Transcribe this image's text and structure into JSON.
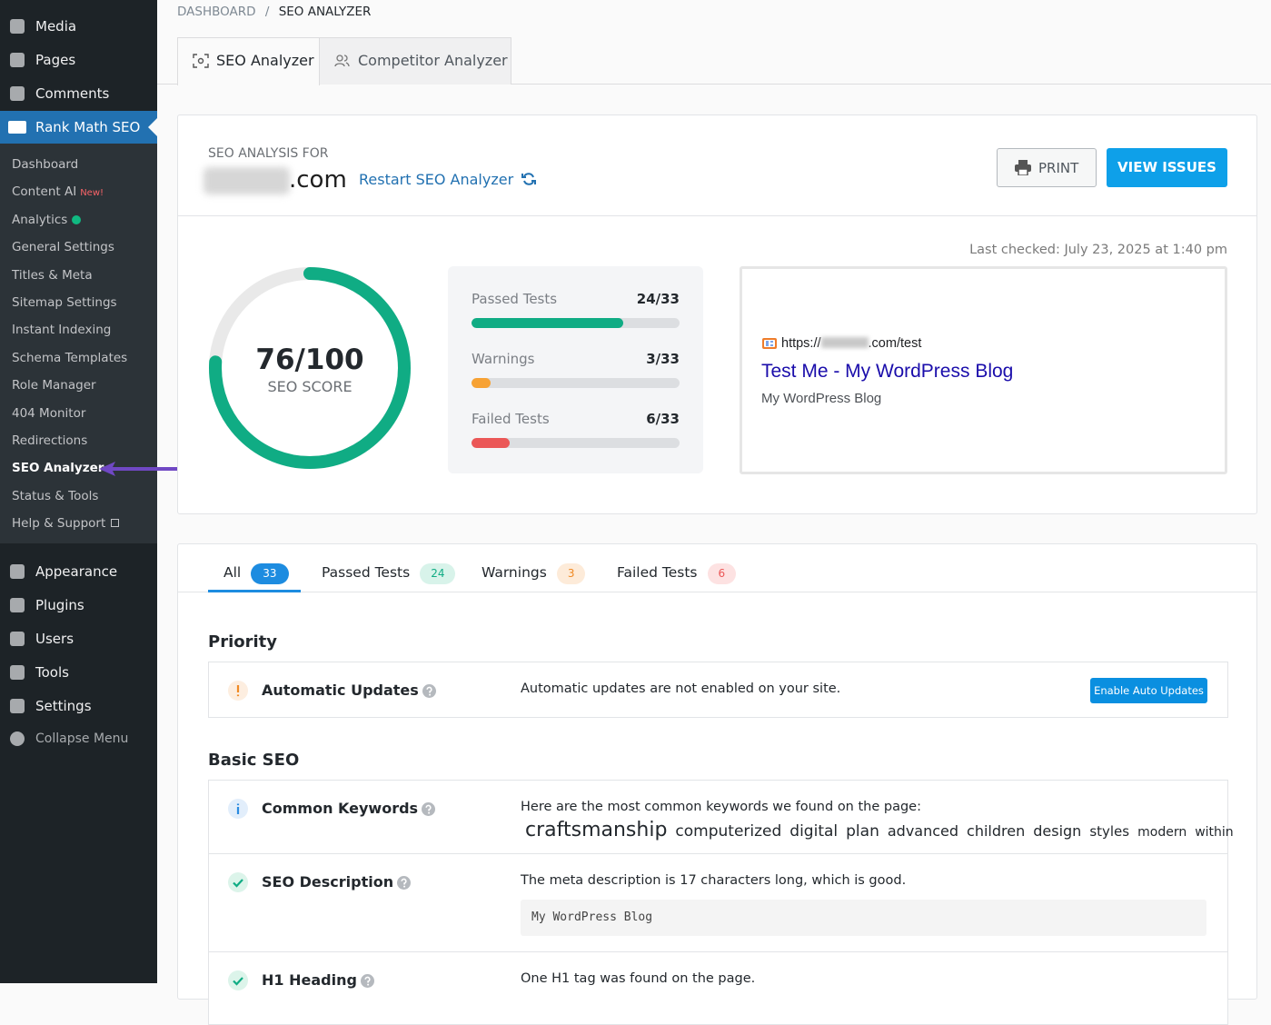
{
  "sidebar": {
    "menu_top": [
      "Media",
      "Pages",
      "Comments"
    ],
    "active": "Rank Math SEO",
    "submenu": [
      "Dashboard",
      "Content AI",
      "Analytics",
      "General Settings",
      "Titles & Meta",
      "Sitemap Settings",
      "Instant Indexing",
      "Schema Templates",
      "Role Manager",
      "404 Monitor",
      "Redirections",
      "SEO Analyzer",
      "Status & Tools",
      "Help & Support"
    ],
    "new_badge": "New!",
    "menu_bottom": [
      "Appearance",
      "Plugins",
      "Users",
      "Tools",
      "Settings",
      "Collapse Menu"
    ]
  },
  "breadcrumb": {
    "parent": "DASHBOARD",
    "separator": "/",
    "current": "SEO ANALYZER"
  },
  "tabs": [
    "SEO Analyzer",
    "Competitor Analyzer"
  ],
  "analysis": {
    "label": "SEO ANALYSIS FOR",
    "domain_suffix": ".com",
    "restart": "Restart SEO Analyzer",
    "print": "PRINT",
    "view_issues": "VIEW ISSUES",
    "last_checked": "Last checked: July 23, 2025 at 1:40 pm"
  },
  "score": {
    "value": 76,
    "max": 100,
    "value_label": "76/100",
    "label": "SEO SCORE"
  },
  "stats": [
    {
      "label": "Passed Tests",
      "value": 24,
      "total": 33,
      "value_label": "24/33"
    },
    {
      "label": "Warnings",
      "value": 3,
      "total": 33,
      "value_label": "3/33"
    },
    {
      "label": "Failed Tests",
      "value": 6,
      "total": 33,
      "value_label": "6/33"
    }
  ],
  "preview": {
    "url_prefix": "https://",
    "url_suffix": ".com/test",
    "title": "Test Me - My WordPress Blog",
    "description": "My WordPress Blog"
  },
  "filters": [
    {
      "label": "All",
      "count": 33
    },
    {
      "label": "Passed Tests",
      "count": 24
    },
    {
      "label": "Warnings",
      "count": 3
    },
    {
      "label": "Failed Tests",
      "count": 6
    }
  ],
  "sections": [
    {
      "title": "Priority",
      "items": [
        {
          "title": "Automatic Updates",
          "message": "Automatic updates are not enabled on your site.",
          "button": "Enable Auto Updates"
        }
      ]
    },
    {
      "title": "Basic SEO",
      "items": [
        {
          "title": "Common Keywords",
          "message": "Here are the most common keywords we found on the page:",
          "keywords": [
            "craftsmanship",
            "computerized",
            "digital",
            "plan",
            "advanced",
            "children",
            "design",
            "styles",
            "modern",
            "within"
          ]
        },
        {
          "title": "SEO Description",
          "message": "The meta description is 17 characters long, which is good.",
          "code": "My WordPress Blog"
        },
        {
          "title": "H1 Heading",
          "message": "One H1 tag was found on the page."
        }
      ]
    }
  ]
}
